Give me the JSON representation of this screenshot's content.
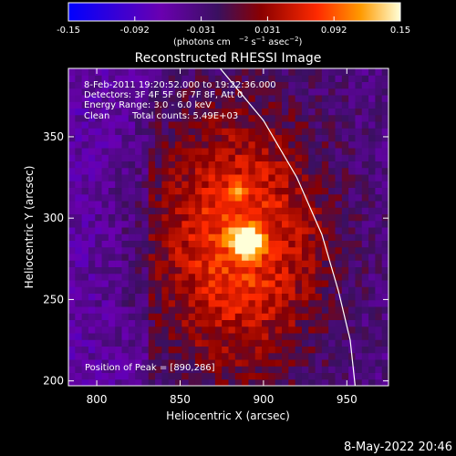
{
  "chart_data": {
    "type": "heatmap",
    "title": "Reconstructed RHESSI Image",
    "xlabel": "Heliocentric X (arcsec)",
    "ylabel": "Heliocentric Y (arcsec)",
    "xlim": [
      783,
      975
    ],
    "ylim": [
      197,
      392
    ],
    "x_ticks": [
      800,
      850,
      900,
      950
    ],
    "y_ticks": [
      200,
      250,
      300,
      350
    ],
    "colorbar": {
      "min": -0.15,
      "max": 0.15,
      "ticks": [
        "-0.15",
        "-0.092",
        "-0.031",
        "0.031",
        "0.092",
        "0.15"
      ],
      "unit_label": "(photons cm",
      "colors": [
        "#0000ff",
        "#6a00b0",
        "#3a1060",
        "#8a0000",
        "#ff2a00",
        "#ff9a00",
        "#ffffd8"
      ]
    },
    "info": {
      "time_range": "8-Feb-2011 19:20:52.000 to 19:22:36.000",
      "detectors": "Detectors: 3F 4F 5F 6F 7F 8F, Att 0",
      "energy": "Energy Range: 3.0 - 6.0 keV",
      "clean": "Clean",
      "counts": "Total counts: 5.49E+03"
    },
    "peak_label": "Position of Peak = [890,286]",
    "peak": [
      890,
      286
    ],
    "secondary_source": [
      884,
      316
    ],
    "limb_curve": [
      [
        874,
        392
      ],
      [
        900,
        360
      ],
      [
        920,
        325
      ],
      [
        935,
        290
      ],
      [
        945,
        255
      ],
      [
        952,
        225
      ],
      [
        955,
        197
      ]
    ],
    "grid": false
  },
  "footer": {
    "date": "8-May-2022 20:46"
  }
}
